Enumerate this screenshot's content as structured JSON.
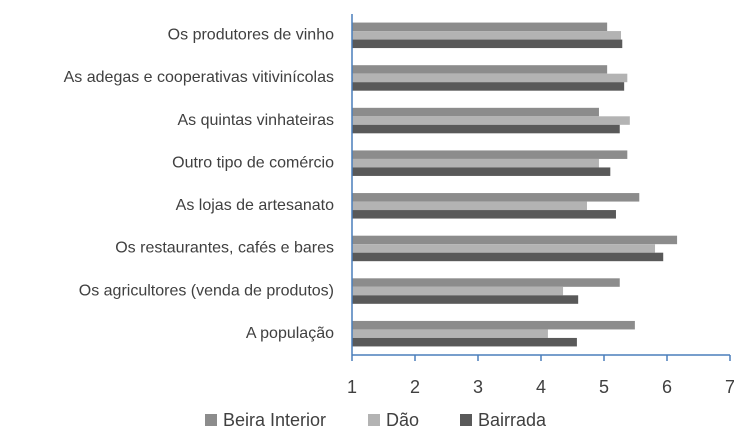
{
  "chart_data": {
    "type": "hbar",
    "categories": [
      "Os produtores de vinho",
      "As adegas e cooperativas vitivinícolas",
      "As quintas vinhateiras",
      "Outro tipo de comércio",
      "As lojas de artesanato",
      "Os restaurantes, cafés e bares",
      "Os agricultores (venda de produtos)",
      "A população"
    ],
    "series": [
      {
        "name": "Beira Interior",
        "color": "#8c8c8c",
        "values": [
          5.05,
          5.05,
          4.92,
          5.37,
          5.56,
          6.16,
          5.25,
          5.49
        ]
      },
      {
        "name": "Dão",
        "color": "#b3b3b3",
        "values": [
          5.27,
          5.37,
          5.41,
          4.92,
          4.73,
          5.81,
          4.35,
          4.11
        ]
      },
      {
        "name": "Bairrada",
        "color": "#595959",
        "values": [
          5.29,
          5.32,
          5.25,
          5.1,
          5.19,
          5.94,
          4.59,
          4.57
        ]
      }
    ],
    "xlim": [
      1,
      7
    ],
    "xticks": [
      1,
      2,
      3,
      4,
      5,
      6,
      7
    ],
    "legend": "bottom"
  }
}
